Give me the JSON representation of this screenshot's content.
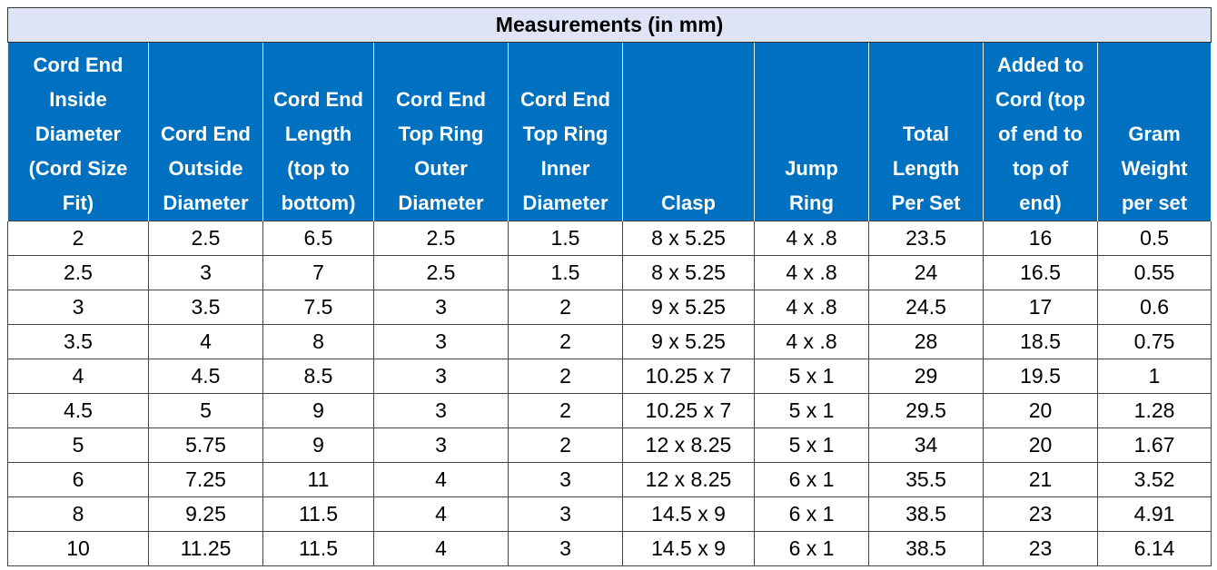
{
  "table": {
    "title": "Measurements (in mm)",
    "headers": [
      [
        "Cord End",
        "Inside",
        "Diameter",
        "(Cord Size",
        "Fit)"
      ],
      [
        "Cord End",
        "Outside",
        "Diameter"
      ],
      [
        "Cord End",
        "Length",
        "(top to",
        "bottom)"
      ],
      [
        "Cord End",
        "Top Ring",
        "Outer",
        "Diameter"
      ],
      [
        "Cord End",
        "Top Ring",
        "Inner",
        "Diameter"
      ],
      [
        "Clasp"
      ],
      [
        "Jump",
        "Ring"
      ],
      [
        "Total",
        "Length",
        "Per Set"
      ],
      [
        "Added to",
        "Cord (top",
        "of end to",
        "top of",
        "end)"
      ],
      [
        "Gram",
        "Weight",
        "per set"
      ]
    ],
    "rows": [
      [
        2,
        2.5,
        6.5,
        2.5,
        1.5,
        "8 x 5.25",
        "4 x .8",
        23.5,
        16,
        0.5
      ],
      [
        2.5,
        3,
        7,
        2.5,
        1.5,
        "8 x 5.25",
        "4 x .8",
        24,
        16.5,
        0.55
      ],
      [
        3,
        3.5,
        7.5,
        3,
        2,
        "9 x 5.25",
        "4 x .8",
        24.5,
        17,
        0.6
      ],
      [
        3.5,
        4,
        8,
        3,
        2,
        "9 x 5.25",
        "4 x .8",
        28,
        18.5,
        0.75
      ],
      [
        4,
        4.5,
        8.5,
        3,
        2,
        "10.25 x 7",
        "5 x 1",
        29,
        19.5,
        1
      ],
      [
        4.5,
        5,
        9,
        3,
        2,
        "10.25 x 7",
        "5 x 1",
        29.5,
        20,
        1.28
      ],
      [
        5,
        5.75,
        9,
        3,
        2,
        "12 x 8.25",
        "5 x 1",
        34,
        20,
        1.67
      ],
      [
        6,
        7.25,
        11,
        4,
        3,
        "12 x 8.25",
        "6 x 1",
        35.5,
        21,
        3.52
      ],
      [
        8,
        9.25,
        11.5,
        4,
        3,
        "14.5 x 9",
        "6 x 1",
        38.5,
        23,
        4.91
      ],
      [
        10,
        11.25,
        11.5,
        4,
        3,
        "14.5 x 9",
        "6 x 1",
        38.5,
        23,
        6.14
      ]
    ]
  }
}
